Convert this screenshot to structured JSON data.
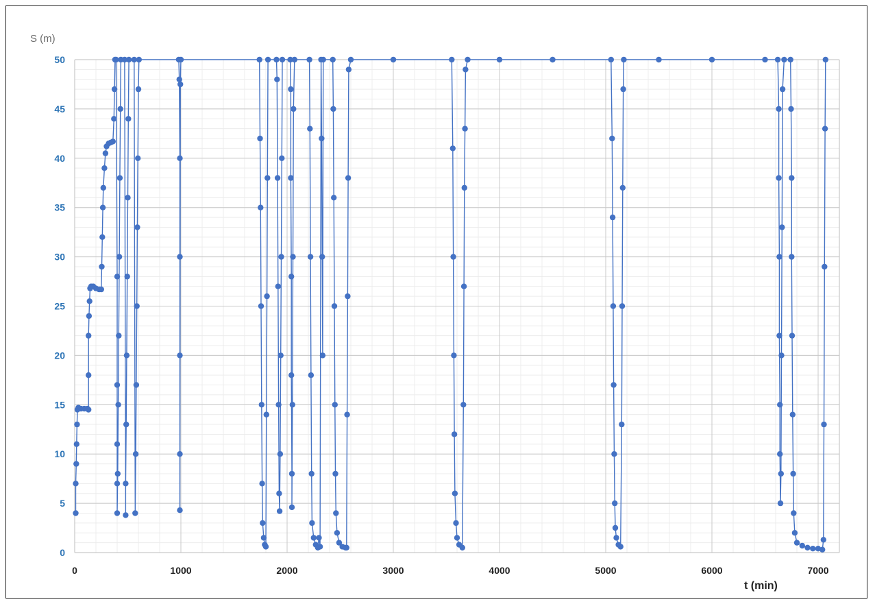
{
  "chart_data": {
    "type": "scatter",
    "title": "",
    "ylabel": "S (m)",
    "xlabel": "t (min)",
    "xlim": [
      0,
      7200
    ],
    "ylim": [
      0,
      50
    ],
    "x_ticks": [
      0,
      1000,
      2000,
      3000,
      4000,
      5000,
      6000,
      7000
    ],
    "y_ticks": [
      0,
      5,
      10,
      15,
      20,
      25,
      30,
      35,
      40,
      45,
      50
    ],
    "grid": "on (major and minor)",
    "legend": "none",
    "marker_color": "#4472c4",
    "series": [
      {
        "name": "",
        "points": [
          [
            10,
            4
          ],
          [
            10,
            7
          ],
          [
            15,
            9
          ],
          [
            18,
            11
          ],
          [
            22,
            13
          ],
          [
            26,
            14.5
          ],
          [
            35,
            14.7
          ],
          [
            60,
            14.6
          ],
          [
            90,
            14.6
          ],
          [
            120,
            14.6
          ],
          [
            130,
            14.5
          ],
          [
            130,
            18
          ],
          [
            130,
            22
          ],
          [
            135,
            24
          ],
          [
            140,
            25.5
          ],
          [
            145,
            26.8
          ],
          [
            155,
            27
          ],
          [
            175,
            27
          ],
          [
            200,
            26.8
          ],
          [
            230,
            26.7
          ],
          [
            250,
            26.7
          ],
          [
            255,
            29
          ],
          [
            260,
            32
          ],
          [
            265,
            35
          ],
          [
            270,
            37
          ],
          [
            280,
            39
          ],
          [
            290,
            40.5
          ],
          [
            300,
            41.2
          ],
          [
            320,
            41.5
          ],
          [
            340,
            41.6
          ],
          [
            360,
            41.7
          ],
          [
            370,
            44
          ],
          [
            375,
            47
          ],
          [
            380,
            50
          ],
          [
            390,
            50
          ],
          [
            400,
            28
          ],
          [
            400,
            17
          ],
          [
            400,
            11
          ],
          [
            400,
            7
          ],
          [
            400,
            4
          ],
          [
            405,
            8
          ],
          [
            410,
            15
          ],
          [
            415,
            22
          ],
          [
            420,
            30
          ],
          [
            425,
            38
          ],
          [
            430,
            45
          ],
          [
            435,
            50
          ],
          [
            470,
            50
          ],
          [
            480,
            3.8
          ],
          [
            480,
            7
          ],
          [
            485,
            13
          ],
          [
            490,
            20
          ],
          [
            495,
            28
          ],
          [
            500,
            36
          ],
          [
            505,
            44
          ],
          [
            510,
            50
          ],
          [
            560,
            50
          ],
          [
            570,
            4
          ],
          [
            575,
            10
          ],
          [
            580,
            17
          ],
          [
            585,
            25
          ],
          [
            590,
            33
          ],
          [
            595,
            40
          ],
          [
            600,
            47
          ],
          [
            605,
            50
          ],
          [
            980,
            50
          ],
          [
            985,
            48
          ],
          [
            990,
            40
          ],
          [
            990,
            30
          ],
          [
            990,
            20
          ],
          [
            990,
            10
          ],
          [
            990,
            4.3
          ],
          [
            995,
            47.5
          ],
          [
            1000,
            50
          ],
          [
            1740,
            50
          ],
          [
            1745,
            42
          ],
          [
            1750,
            35
          ],
          [
            1755,
            25
          ],
          [
            1760,
            15
          ],
          [
            1765,
            7
          ],
          [
            1770,
            3
          ],
          [
            1780,
            1.5
          ],
          [
            1790,
            0.8
          ],
          [
            1800,
            0.6
          ],
          [
            1805,
            14
          ],
          [
            1810,
            26
          ],
          [
            1815,
            38
          ],
          [
            1820,
            50
          ],
          [
            1900,
            50
          ],
          [
            1905,
            48
          ],
          [
            1910,
            38
          ],
          [
            1915,
            27
          ],
          [
            1920,
            15
          ],
          [
            1925,
            6
          ],
          [
            1930,
            4.2
          ],
          [
            1935,
            10
          ],
          [
            1940,
            20
          ],
          [
            1945,
            30
          ],
          [
            1950,
            40
          ],
          [
            1955,
            50
          ],
          [
            2030,
            50
          ],
          [
            2035,
            47
          ],
          [
            2035,
            38
          ],
          [
            2040,
            28
          ],
          [
            2040,
            18
          ],
          [
            2045,
            8
          ],
          [
            2045,
            4.6
          ],
          [
            2050,
            15
          ],
          [
            2055,
            30
          ],
          [
            2060,
            45
          ],
          [
            2070,
            50
          ],
          [
            2210,
            50
          ],
          [
            2215,
            43
          ],
          [
            2220,
            30
          ],
          [
            2225,
            18
          ],
          [
            2230,
            8
          ],
          [
            2235,
            3
          ],
          [
            2250,
            1.5
          ],
          [
            2270,
            0.8
          ],
          [
            2290,
            0.5
          ],
          [
            2300,
            1.5
          ],
          [
            2310,
            0.6
          ],
          [
            2320,
            50
          ],
          [
            2325,
            42
          ],
          [
            2330,
            30
          ],
          [
            2335,
            20
          ],
          [
            2340,
            50
          ],
          [
            2430,
            50
          ],
          [
            2435,
            45
          ],
          [
            2440,
            36
          ],
          [
            2445,
            25
          ],
          [
            2450,
            15
          ],
          [
            2455,
            8
          ],
          [
            2460,
            4
          ],
          [
            2470,
            2
          ],
          [
            2490,
            1
          ],
          [
            2520,
            0.6
          ],
          [
            2550,
            0.5
          ],
          [
            2560,
            0.5
          ],
          [
            2565,
            14
          ],
          [
            2570,
            26
          ],
          [
            2575,
            38
          ],
          [
            2580,
            49
          ],
          [
            2600,
            50
          ],
          [
            3000,
            50
          ],
          [
            3550,
            50
          ],
          [
            3560,
            41
          ],
          [
            3565,
            30
          ],
          [
            3570,
            20
          ],
          [
            3575,
            12
          ],
          [
            3580,
            6
          ],
          [
            3590,
            3
          ],
          [
            3600,
            1.5
          ],
          [
            3620,
            0.8
          ],
          [
            3650,
            0.5
          ],
          [
            3660,
            15
          ],
          [
            3665,
            27
          ],
          [
            3670,
            37
          ],
          [
            3675,
            43
          ],
          [
            3680,
            49
          ],
          [
            3700,
            50
          ],
          [
            4000,
            50
          ],
          [
            4500,
            50
          ],
          [
            5050,
            50
          ],
          [
            5060,
            42
          ],
          [
            5065,
            34
          ],
          [
            5070,
            25
          ],
          [
            5075,
            17
          ],
          [
            5080,
            10
          ],
          [
            5085,
            5
          ],
          [
            5090,
            2.5
          ],
          [
            5100,
            1.5
          ],
          [
            5120,
            0.8
          ],
          [
            5140,
            0.6
          ],
          [
            5150,
            13
          ],
          [
            5155,
            25
          ],
          [
            5160,
            37
          ],
          [
            5165,
            47
          ],
          [
            5170,
            50
          ],
          [
            5500,
            50
          ],
          [
            6000,
            50
          ],
          [
            6500,
            50
          ],
          [
            6620,
            50
          ],
          [
            6630,
            45
          ],
          [
            6630,
            38
          ],
          [
            6635,
            30
          ],
          [
            6635,
            22
          ],
          [
            6640,
            15
          ],
          [
            6640,
            10
          ],
          [
            6645,
            5
          ],
          [
            6650,
            8
          ],
          [
            6655,
            20
          ],
          [
            6660,
            33
          ],
          [
            6665,
            47
          ],
          [
            6680,
            50
          ],
          [
            6740,
            50
          ],
          [
            6745,
            45
          ],
          [
            6750,
            38
          ],
          [
            6750,
            30
          ],
          [
            6755,
            22
          ],
          [
            6760,
            14
          ],
          [
            6765,
            8
          ],
          [
            6770,
            4
          ],
          [
            6780,
            2
          ],
          [
            6800,
            1
          ],
          [
            6850,
            0.7
          ],
          [
            6900,
            0.5
          ],
          [
            6950,
            0.4
          ],
          [
            7000,
            0.4
          ],
          [
            7040,
            0.3
          ],
          [
            7050,
            1.3
          ],
          [
            7055,
            13
          ],
          [
            7060,
            29
          ],
          [
            7065,
            43
          ],
          [
            7070,
            50
          ]
        ]
      }
    ]
  }
}
